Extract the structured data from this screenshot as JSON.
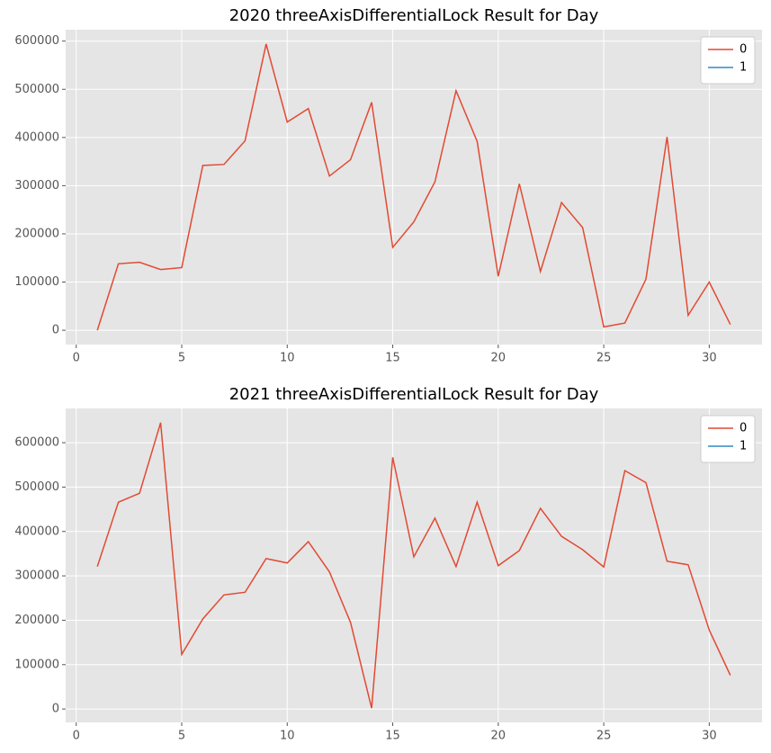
{
  "chart_data": [
    {
      "type": "line",
      "title": "2020 threeAxisDifferentialLock Result for Day",
      "x": [
        1,
        2,
        3,
        4,
        5,
        6,
        7,
        8,
        9,
        10,
        11,
        12,
        13,
        14,
        15,
        16,
        17,
        18,
        19,
        20,
        21,
        22,
        23,
        24,
        25,
        26,
        27,
        28,
        29,
        30,
        31
      ],
      "series": [
        {
          "name": "0",
          "color": "#E24A33",
          "values": [
            0,
            138000,
            141000,
            126000,
            130000,
            342000,
            344000,
            393000,
            594000,
            432000,
            460000,
            320000,
            354000,
            473000,
            172000,
            225000,
            308000,
            497000,
            392000,
            112000,
            304000,
            122000,
            265000,
            213000,
            7000,
            15000,
            106000,
            401000,
            31000,
            100000,
            12000
          ]
        },
        {
          "name": "1",
          "color": "#348ABD",
          "values": [
            null,
            null,
            null,
            null,
            null,
            null,
            null,
            null,
            null,
            null,
            null,
            null,
            null,
            null,
            null,
            null,
            null,
            null,
            null,
            null,
            null,
            null,
            null,
            null,
            null,
            null,
            null,
            null,
            null,
            null,
            null
          ]
        }
      ],
      "xlim": [
        -0.5,
        32.5
      ],
      "xticks": [
        0,
        5,
        10,
        15,
        20,
        25,
        30
      ],
      "ylim": [
        -29700,
        623700
      ],
      "yticks": [
        0,
        100000,
        200000,
        300000,
        400000,
        500000,
        600000
      ],
      "grid": true,
      "legend": "upper right"
    },
    {
      "type": "line",
      "title": "2021 threeAxisDifferentialLock Result for Day",
      "x": [
        1,
        2,
        3,
        4,
        5,
        6,
        7,
        8,
        9,
        10,
        11,
        12,
        13,
        14,
        15,
        16,
        17,
        18,
        19,
        20,
        21,
        22,
        23,
        24,
        25,
        26,
        27,
        28,
        29,
        30,
        31
      ],
      "series": [
        {
          "name": "0",
          "color": "#E24A33",
          "values": [
            321000,
            466000,
            486000,
            645000,
            123000,
            203000,
            257000,
            263000,
            339000,
            329000,
            377000,
            309000,
            195000,
            2000,
            567000,
            343000,
            430000,
            321000,
            466000,
            323000,
            357000,
            452000,
            389000,
            359000,
            320000,
            537000,
            510000,
            333000,
            325000,
            178000,
            76000
          ]
        },
        {
          "name": "1",
          "color": "#348ABD",
          "values": [
            null,
            null,
            null,
            null,
            null,
            null,
            null,
            null,
            null,
            null,
            null,
            null,
            null,
            null,
            null,
            null,
            null,
            null,
            null,
            null,
            null,
            null,
            null,
            null,
            null,
            null,
            null,
            null,
            null,
            null,
            null
          ]
        }
      ],
      "xlim": [
        -0.5,
        32.5
      ],
      "xticks": [
        0,
        5,
        10,
        15,
        20,
        25,
        30
      ],
      "ylim": [
        -30150,
        677150
      ],
      "yticks": [
        0,
        100000,
        200000,
        300000,
        400000,
        500000,
        600000
      ],
      "grid": true,
      "legend": "upper right"
    }
  ]
}
